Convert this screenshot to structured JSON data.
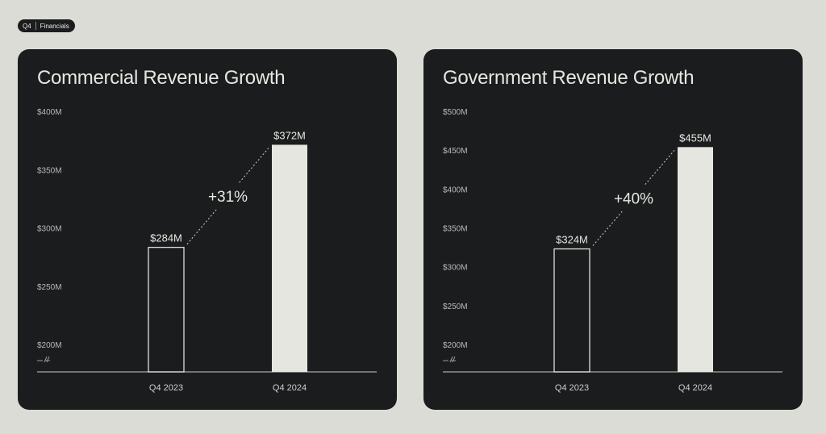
{
  "tag": {
    "quarter": "Q4",
    "section": "Financials"
  },
  "colors": {
    "background": "#dcdcd6",
    "panel": "#1b1c1e",
    "bar_filled": "#e6e6e0",
    "text": "#e7e7e1"
  },
  "chart_data": [
    {
      "type": "bar",
      "title": "Commercial Revenue Growth",
      "categories": [
        "Q4 2023",
        "Q4 2024"
      ],
      "values": [
        284,
        372
      ],
      "value_labels": [
        "$284M",
        "$372M"
      ],
      "bar_styles": [
        "outline",
        "filled"
      ],
      "yticks": [
        200,
        250,
        300,
        350,
        400
      ],
      "ytick_labels": [
        "$200M",
        "$250M",
        "$300M",
        "$350M",
        "$400M"
      ],
      "ylim": [
        200,
        400
      ],
      "axis_break": true,
      "growth_label": "+31%",
      "grid": false
    },
    {
      "type": "bar",
      "title": "Government Revenue Growth",
      "categories": [
        "Q4 2023",
        "Q4 2024"
      ],
      "values": [
        324,
        455
      ],
      "value_labels": [
        "$324M",
        "$455M"
      ],
      "bar_styles": [
        "outline",
        "filled"
      ],
      "yticks": [
        200,
        250,
        300,
        350,
        400,
        450,
        500
      ],
      "ytick_labels": [
        "$200M",
        "$250M",
        "$300M",
        "$350M",
        "$400M",
        "$450M",
        "$500M"
      ],
      "ylim": [
        200,
        500
      ],
      "axis_break": true,
      "growth_label": "+40%",
      "grid": false
    }
  ]
}
